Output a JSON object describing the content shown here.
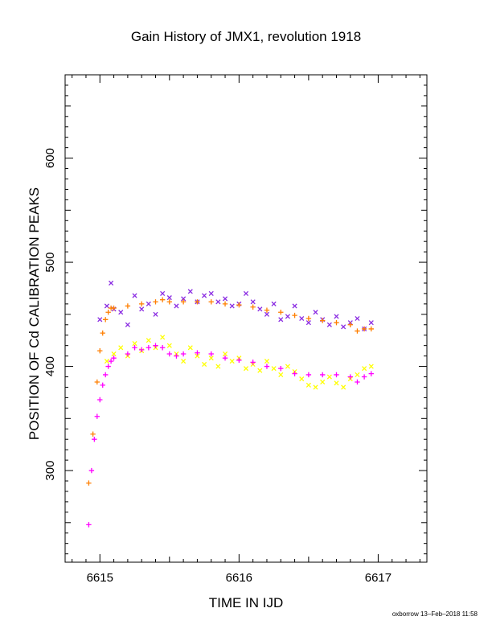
{
  "chart_data": {
    "type": "scatter",
    "title": "Gain History of JMX1, revolution 1918",
    "xlabel": "TIME IN IJD",
    "ylabel": "POSITION OF Cd CALIBRATION PEAKS",
    "xlim": [
      6614.75,
      6617.35
    ],
    "ylim": [
      212,
      680
    ],
    "x_ticks": [
      6615,
      6616,
      6617
    ],
    "y_ticks": [
      300,
      400,
      500,
      600
    ],
    "grid": false,
    "series": [
      {
        "marker": "x",
        "color": "#8a2be2",
        "x": [
          6615.0,
          6615.05,
          6615.08,
          6615.1,
          6615.15,
          6615.2,
          6615.25,
          6615.3,
          6615.35,
          6615.4,
          6615.45,
          6615.5,
          6615.55,
          6615.6,
          6615.65,
          6615.7,
          6615.75,
          6615.8,
          6615.85,
          6615.9,
          6615.95,
          6616.0,
          6616.05,
          6616.1,
          6616.15,
          6616.2,
          6616.25,
          6616.3,
          6616.35,
          6616.4,
          6616.45,
          6616.5,
          6616.55,
          6616.6,
          6616.65,
          6616.7,
          6616.75,
          6616.8,
          6616.85,
          6616.9,
          6616.95
        ],
        "values": [
          445,
          458,
          480,
          455,
          452,
          440,
          468,
          455,
          460,
          450,
          470,
          466,
          458,
          465,
          472,
          462,
          468,
          470,
          462,
          465,
          458,
          460,
          470,
          462,
          455,
          450,
          460,
          445,
          448,
          458,
          446,
          442,
          452,
          445,
          440,
          448,
          438,
          442,
          446,
          436,
          442
        ]
      },
      {
        "marker": "x",
        "color": "#ffff00",
        "x": [
          6615.05,
          6615.1,
          6615.15,
          6615.2,
          6615.25,
          6615.3,
          6615.35,
          6615.4,
          6615.45,
          6615.5,
          6615.55,
          6615.6,
          6615.65,
          6615.7,
          6615.75,
          6615.8,
          6615.85,
          6615.9,
          6615.95,
          6616.0,
          6616.05,
          6616.1,
          6616.15,
          6616.2,
          6616.25,
          6616.3,
          6616.35,
          6616.4,
          6616.45,
          6616.5,
          6616.55,
          6616.6,
          6616.65,
          6616.7,
          6616.75,
          6616.8,
          6616.85,
          6616.9,
          6616.95
        ],
        "values": [
          405,
          412,
          418,
          410,
          422,
          415,
          425,
          418,
          428,
          420,
          412,
          405,
          418,
          410,
          402,
          408,
          400,
          412,
          405,
          408,
          398,
          402,
          396,
          405,
          398,
          392,
          400,
          395,
          388,
          382,
          380,
          385,
          390,
          384,
          380,
          388,
          392,
          398,
          400
        ]
      },
      {
        "marker": "+",
        "color": "#ff7f00",
        "x": [
          6614.92,
          6614.95,
          6614.98,
          6615.0,
          6615.02,
          6615.04,
          6615.06,
          6615.08,
          6615.1,
          6615.2,
          6615.3,
          6615.4,
          6615.45,
          6615.5,
          6615.6,
          6615.7,
          6615.8,
          6615.9,
          6616.0,
          6616.1,
          6616.2,
          6616.3,
          6616.4,
          6616.5,
          6616.6,
          6616.7,
          6616.8,
          6616.85,
          6616.9,
          6616.95
        ],
        "values": [
          288,
          335,
          385,
          415,
          432,
          445,
          452,
          456,
          456,
          458,
          460,
          462,
          464,
          462,
          462,
          462,
          462,
          460,
          459,
          457,
          454,
          452,
          449,
          446,
          444,
          442,
          440,
          434,
          436,
          436
        ]
      },
      {
        "marker": "+",
        "color": "#ff00ff",
        "x": [
          6614.92,
          6614.94,
          6614.96,
          6614.98,
          6615.0,
          6615.02,
          6615.04,
          6615.06,
          6615.08,
          6615.1,
          6615.2,
          6615.25,
          6615.3,
          6615.35,
          6615.4,
          6615.45,
          6615.5,
          6615.55,
          6615.6,
          6615.7,
          6615.8,
          6615.9,
          6616.0,
          6616.1,
          6616.2,
          6616.3,
          6616.4,
          6616.5,
          6616.6,
          6616.7,
          6616.8,
          6616.85,
          6616.9,
          6616.95
        ],
        "values": [
          248,
          300,
          330,
          352,
          368,
          382,
          392,
          400,
          405,
          408,
          412,
          418,
          416,
          418,
          420,
          418,
          412,
          410,
          412,
          413,
          412,
          408,
          406,
          404,
          400,
          398,
          393,
          392,
          392,
          392,
          390,
          385,
          390,
          393
        ]
      }
    ]
  },
  "footer": "oxborrow 13–Feb–2018 11:58"
}
